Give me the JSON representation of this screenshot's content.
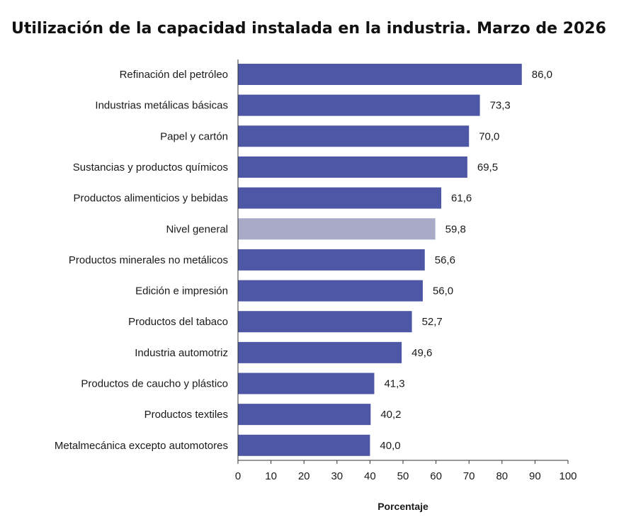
{
  "chart_data": {
    "type": "bar",
    "orientation": "horizontal",
    "title": "Utilización de la capacidad instalada en la industria. Marzo de 2026",
    "xlabel": "Porcentaje",
    "ylabel": "",
    "xlim": [
      0,
      100
    ],
    "x_ticks": [
      "0",
      "10",
      "20",
      "30",
      "40",
      "50",
      "60",
      "70",
      "80",
      "90",
      "100"
    ],
    "grid": false,
    "legend": "none",
    "categories": [
      "Refinación del petróleo",
      "Industrias metálicas básicas",
      "Papel y cartón",
      "Sustancias y productos químicos",
      "Productos alimenticios y bebidas",
      "Nivel general",
      "Productos minerales no metálicos",
      "Edición e impresión",
      "Productos del tabaco",
      "Industria automotriz",
      "Productos de caucho y plástico",
      "Productos textiles",
      "Metalmecánica excepto automotores"
    ],
    "values": [
      86.0,
      73.3,
      70.0,
      69.5,
      61.6,
      59.8,
      56.6,
      56.0,
      52.7,
      49.6,
      41.3,
      40.2,
      40.0
    ],
    "value_labels": [
      "86,0",
      "73,3",
      "70,0",
      "69,5",
      "61,6",
      "59,8",
      "56,6",
      "56,0",
      "52,7",
      "49,6",
      "41,3",
      "40,2",
      "40,0"
    ],
    "colors": {
      "bar": "#4e57a6",
      "highlight_bar": "#a9a9c8",
      "highlight_category": "Nivel general",
      "axis": "#333333"
    }
  }
}
